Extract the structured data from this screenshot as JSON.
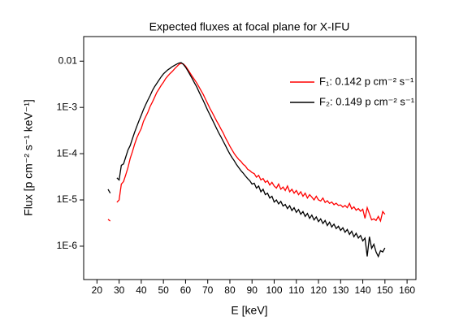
{
  "chart_data": {
    "type": "line",
    "title": "Expected fluxes at focal plane for X-IFU",
    "xlabel": "E [keV]",
    "ylabel": "Flux   [p cm⁻² s⁻¹ keV⁻¹]",
    "xlim": [
      14,
      164
    ],
    "ylim": [
      1.9e-07,
      0.034
    ],
    "log_y": true,
    "xticks": [
      20,
      30,
      40,
      50,
      60,
      70,
      80,
      90,
      100,
      110,
      120,
      130,
      140,
      150,
      160
    ],
    "yticks": [
      0.01,
      {
        "value": 0.001,
        "label": "1E-3"
      },
      {
        "value": 0.0001,
        "label": "1E-4"
      },
      {
        "value": 1e-05,
        "label": "1E-5"
      },
      {
        "value": 1e-06,
        "label": "1E-6"
      }
    ],
    "legend": "upper right",
    "x": [
      25,
      26,
      27,
      28,
      29,
      30,
      31,
      32,
      33,
      34,
      35,
      36,
      37,
      38,
      39,
      40,
      41,
      42,
      43,
      44,
      45,
      46,
      47,
      48,
      49,
      50,
      51,
      52,
      53,
      54,
      55,
      56,
      57,
      58,
      59,
      60,
      61,
      62,
      63,
      64,
      65,
      66,
      67,
      68,
      69,
      70,
      71,
      72,
      73,
      74,
      75,
      76,
      77,
      78,
      79,
      80,
      81,
      82,
      83,
      84,
      85,
      86,
      87,
      88,
      89,
      90,
      91,
      92,
      93,
      94,
      95,
      96,
      97,
      98,
      99,
      100,
      101,
      102,
      103,
      104,
      105,
      106,
      107,
      108,
      109,
      110,
      111,
      112,
      113,
      114,
      115,
      116,
      117,
      118,
      119,
      120,
      121,
      122,
      123,
      124,
      125,
      126,
      127,
      128,
      129,
      130,
      131,
      132,
      133,
      134,
      135,
      136,
      137,
      138,
      139,
      140,
      141,
      142,
      143,
      144,
      145,
      146,
      147,
      148,
      149,
      150
    ],
    "series": [
      {
        "name": "F₁: 0.142 p cm⁻² s⁻¹",
        "color": "#ff0000",
        "values": [
          3.8e-06,
          3.5e-06,
          null,
          null,
          8.9e-06,
          1e-05,
          2.2e-05,
          2.5e-05,
          3.5e-05,
          5e-05,
          7.9e-05,
          0.00011,
          0.00016,
          0.00022,
          0.00028,
          0.00035,
          0.0005,
          0.00063,
          0.00079,
          0.00105,
          0.0013,
          0.00165,
          0.0021,
          0.0025,
          0.003,
          0.0035,
          0.0042,
          0.0048,
          0.0054,
          0.006,
          0.0068,
          0.0076,
          0.0085,
          0.009,
          0.0087,
          0.0078,
          0.0066,
          0.0056,
          0.0047,
          0.004,
          0.0034,
          0.0028,
          0.0023,
          0.0019,
          0.0015,
          0.0012,
          0.00095,
          0.00078,
          0.00063,
          0.00051,
          0.00042,
          0.00034,
          0.00028,
          0.00022,
          0.00018,
          0.000145,
          0.00012,
          0.0001,
          8.6e-05,
          7.5e-05,
          6.8e-05,
          5.9e-05,
          5.4e-05,
          4.6e-05,
          4.3e-05,
          3.9e-05,
          3.7e-05,
          3.1e-05,
          3.4e-05,
          2.7e-05,
          2.9e-05,
          2.4e-05,
          2.6e-05,
          2.1e-05,
          2.4e-05,
          2e-05,
          1.8e-05,
          2.2e-05,
          1.7e-05,
          1.9e-05,
          1.6e-05,
          2e-05,
          1.5e-05,
          1.7e-05,
          1.4e-05,
          1.6e-05,
          1.3e-05,
          1.5e-05,
          1.2e-05,
          1.4e-05,
          1.1e-05,
          1.3e-05,
          1.15e-05,
          1e-05,
          1.2e-05,
          1e-05,
          9.5e-06,
          1.1e-05,
          8.8e-06,
          9.6e-06,
          8.4e-06,
          9e-06,
          7.9e-06,
          8.5e-06,
          7.6e-06,
          7.8e-06,
          7e-06,
          7.6e-06,
          6.8e-06,
          8.4e-06,
          6.4e-06,
          7.1e-06,
          6e-06,
          6.5e-06,
          5.7e-06,
          6.3e-06,
          4e-06,
          6.8e-06,
          5e-06,
          3.7e-06,
          3.9e-06,
          3.6e-06,
          4.4e-06,
          3.5e-06,
          5.6e-06,
          4.9e-06
        ]
      },
      {
        "name": "F₂: 0.149 p cm⁻² s⁻¹",
        "color": "#000000",
        "values": [
          1.7e-05,
          1.4e-05,
          null,
          null,
          3e-05,
          2.7e-05,
          5.6e-05,
          6e-05,
          8.5e-05,
          0.00012,
          0.00015,
          0.00021,
          0.00029,
          0.00039,
          0.00052,
          0.00068,
          0.0009,
          0.00115,
          0.00145,
          0.0018,
          0.0023,
          0.0028,
          0.0033,
          0.0039,
          0.0046,
          0.0053,
          0.0059,
          0.0065,
          0.007,
          0.0076,
          0.0081,
          0.0086,
          0.0091,
          0.0093,
          0.0085,
          0.0074,
          0.0062,
          0.0051,
          0.0042,
          0.0034,
          0.0028,
          0.0022,
          0.00175,
          0.0014,
          0.0011,
          0.00086,
          0.00069,
          0.00055,
          0.00044,
          0.00035,
          0.00028,
          0.00023,
          0.000185,
          0.00015,
          0.00012,
          9.8e-05,
          8.2e-05,
          7e-05,
          5.8e-05,
          5e-05,
          4.3e-05,
          3.8e-05,
          3.3e-05,
          2.9e-05,
          2.6e-05,
          2.2e-05,
          2.3e-05,
          1.8e-05,
          2e-05,
          1.5e-05,
          1.7e-05,
          1.3e-05,
          1.4e-05,
          1.1e-05,
          1.2e-05,
          9e-06,
          1e-05,
          8.2e-06,
          9.3e-06,
          7.4e-06,
          8e-06,
          6.5e-06,
          7.5e-06,
          5.9e-06,
          6.8e-06,
          5.4e-06,
          6.2e-06,
          4.9e-06,
          5.6e-06,
          4.4e-06,
          5.1e-06,
          4e-06,
          4.7e-06,
          3.7e-06,
          4.3e-06,
          3.4e-06,
          3.9e-06,
          3.1e-06,
          3.6e-06,
          2.8e-06,
          3.3e-06,
          2.6e-06,
          3e-06,
          2.4e-06,
          2.7e-06,
          2.2e-06,
          2.5e-06,
          2e-06,
          2.3e-06,
          1.8e-06,
          2.1e-06,
          1.6e-06,
          1.9e-06,
          1.5e-06,
          1.7e-06,
          1.3e-06,
          1.5e-06,
          6e-07,
          1.6e-06,
          9e-07,
          1.1e-06,
          7.5e-07,
          6e-07,
          8e-07,
          7.5e-07,
          9.2e-07
        ]
      }
    ]
  }
}
